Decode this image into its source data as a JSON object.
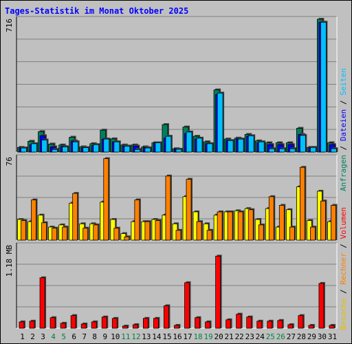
{
  "title": "Tages-Statistik im Monat Oktober 2025",
  "colors": {
    "anfragen": "#00805c",
    "dateien": "#0000ff",
    "seiten": "#00c0ff",
    "besuche": "#ffff00",
    "rechner": "#ff8000",
    "volumen": "#ff0000",
    "weekend_label": "#008040",
    "weekday_label": "#000000",
    "background": "#c0c0c0",
    "title": "#0000ff"
  },
  "right_labels": {
    "top": [
      {
        "text": "Anfragen",
        "color": "#00805c"
      },
      {
        "text": " / ",
        "color": "#000000"
      },
      {
        "text": "Dateien",
        "color": "#0000ff"
      },
      {
        "text": " / ",
        "color": "#000000"
      },
      {
        "text": "Seiten",
        "color": "#00c0ff"
      }
    ],
    "bottom": [
      {
        "text": "Besuche",
        "color": "#e0c000"
      },
      {
        "text": " / ",
        "color": "#000000"
      },
      {
        "text": "Rechner",
        "color": "#ff8000"
      },
      {
        "text": " / ",
        "color": "#000000"
      },
      {
        "text": "Volumen",
        "color": "#ff0000"
      }
    ]
  },
  "chart_data": [
    {
      "type": "bar",
      "name": "hits",
      "ymax_label": "716",
      "ymax": 716,
      "categories": [
        "1",
        "2",
        "3",
        "4",
        "5",
        "6",
        "7",
        "8",
        "9",
        "10",
        "11",
        "12",
        "13",
        "14",
        "15",
        "16",
        "17",
        "18",
        "19",
        "20",
        "21",
        "22",
        "23",
        "24",
        "25",
        "26",
        "27",
        "28",
        "29",
        "30",
        "31"
      ],
      "series": [
        {
          "name": "Anfragen",
          "values": [
            25,
            58,
            110,
            43,
            38,
            80,
            28,
            45,
            118,
            71,
            38,
            38,
            28,
            50,
            148,
            18,
            135,
            85,
            55,
            335,
            70,
            75,
            95,
            60,
            50,
            50,
            50,
            128,
            25,
            716,
            50
          ]
        },
        {
          "name": "Dateien",
          "values": [
            20,
            40,
            88,
            28,
            30,
            60,
            22,
            35,
            70,
            55,
            32,
            32,
            24,
            45,
            75,
            15,
            100,
            70,
            45,
            310,
            62,
            70,
            85,
            50,
            40,
            40,
            40,
            95,
            20,
            700,
            40
          ]
        },
        {
          "name": "Seiten",
          "values": [
            22,
            45,
            65,
            14,
            28,
            55,
            24,
            40,
            70,
            55,
            32,
            14,
            22,
            50,
            85,
            15,
            108,
            75,
            45,
            318,
            62,
            70,
            88,
            55,
            18,
            18,
            18,
            90,
            25,
            700,
            18
          ]
        }
      ]
    },
    {
      "type": "bar",
      "name": "visits",
      "ymax_label": "76",
      "ymax": 76,
      "categories": [
        "1",
        "2",
        "3",
        "4",
        "5",
        "6",
        "7",
        "8",
        "9",
        "10",
        "11",
        "12",
        "13",
        "14",
        "15",
        "16",
        "17",
        "18",
        "19",
        "20",
        "21",
        "22",
        "23",
        "24",
        "25",
        "26",
        "27",
        "28",
        "29",
        "30",
        "31"
      ],
      "series": [
        {
          "name": "Besuche",
          "values": [
            19,
            17,
            23,
            12,
            14,
            34,
            15,
            15,
            35,
            19,
            6,
            17,
            17,
            19,
            23,
            15,
            40,
            26,
            15,
            23,
            26,
            27,
            29,
            19,
            29,
            12,
            28,
            49,
            18,
            45,
            17
          ]
        },
        {
          "name": "Rechner",
          "values": [
            18,
            37,
            16,
            11,
            12,
            43,
            11,
            14,
            75,
            11,
            3,
            37,
            17,
            18,
            59,
            9,
            56,
            17,
            9,
            26,
            26,
            26,
            28,
            14,
            40,
            32,
            12,
            67,
            12,
            36,
            32
          ]
        }
      ]
    },
    {
      "type": "bar",
      "name": "volume",
      "ymax_label": "1.18 MB",
      "ymax": 1.18,
      "categories": [
        "1",
        "2",
        "3",
        "4",
        "5",
        "6",
        "7",
        "8",
        "9",
        "10",
        "11",
        "12",
        "13",
        "14",
        "15",
        "16",
        "17",
        "18",
        "19",
        "20",
        "21",
        "22",
        "23",
        "24",
        "25",
        "26",
        "27",
        "28",
        "29",
        "30",
        "31"
      ],
      "series": [
        {
          "name": "Volumen",
          "values": [
            0.09,
            0.1,
            0.72,
            0.15,
            0.07,
            0.18,
            0.06,
            0.09,
            0.16,
            0.14,
            0.03,
            0.05,
            0.14,
            0.14,
            0.32,
            0.04,
            0.65,
            0.15,
            0.09,
            1.03,
            0.12,
            0.2,
            0.16,
            0.1,
            0.1,
            0.11,
            0.05,
            0.18,
            0.04,
            0.64,
            0.04
          ]
        }
      ]
    }
  ],
  "weekend_days": [
    "4",
    "5",
    "11",
    "12",
    "18",
    "19",
    "25",
    "26"
  ]
}
